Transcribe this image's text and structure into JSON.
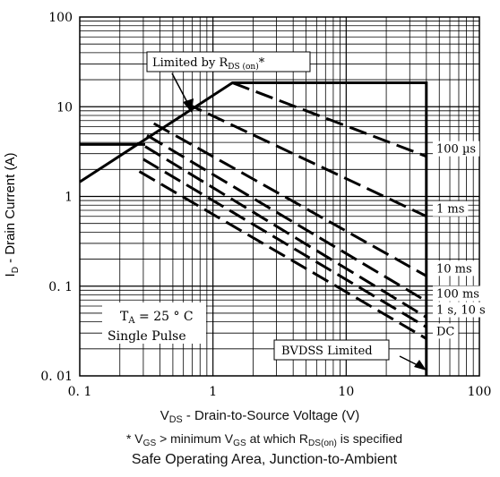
{
  "chart_data": {
    "type": "line",
    "title": "Safe Operating Area, Junction-to-Ambient",
    "xlabel": {
      "main": "V",
      "sub": "DS",
      "rest": " - Drain-to-Source Voltage (V)"
    },
    "ylabel": {
      "main": "I",
      "sub": "D",
      "rest": " - Drain Current (A)"
    },
    "xscale": "log",
    "yscale": "log",
    "xlim": [
      0.1,
      100
    ],
    "ylim": [
      0.01,
      100
    ],
    "grid": true,
    "x_ticks": [
      {
        "v": 0.1,
        "label": "0. 1"
      },
      {
        "v": 1,
        "label": "1"
      },
      {
        "v": 10,
        "label": "10"
      },
      {
        "v": 100,
        "label": "100"
      }
    ],
    "y_ticks": [
      {
        "v": 100,
        "label": "100"
      },
      {
        "v": 10,
        "label": "10"
      },
      {
        "v": 1,
        "label": "1"
      },
      {
        "v": 0.1,
        "label": "0. 1"
      },
      {
        "v": 0.01,
        "label": "0. 01"
      }
    ],
    "boundary_series": [
      {
        "style": "solid",
        "x": [
          0.1,
          1.4,
          40,
          40
        ],
        "y": [
          1.45,
          18.5,
          18.5,
          0.01
        ]
      },
      {
        "style": "solid",
        "x": [
          0.1,
          0.31
        ],
        "y": [
          3.8,
          3.8
        ]
      }
    ],
    "series": [
      {
        "name": "100 µs",
        "label": "100 µs",
        "style": "dashed",
        "x": [
          1.4,
          40
        ],
        "y": [
          18.5,
          2.8
        ]
      },
      {
        "name": "1 ms",
        "label": "1 ms",
        "style": "dashed",
        "x": [
          0.62,
          40
        ],
        "y": [
          11,
          0.6
        ]
      },
      {
        "name": "10 ms",
        "label": "10 ms",
        "style": "dashed",
        "x": [
          0.36,
          40
        ],
        "y": [
          6.5,
          0.13
        ]
      },
      {
        "name": "100 ms",
        "label": "100 ms",
        "style": "dashed",
        "x": [
          0.32,
          40
        ],
        "y": [
          4.8,
          0.068
        ]
      },
      {
        "name": "1 s, 10 s",
        "label": "1 s, 10 s",
        "style": "dashed",
        "x": [
          0.31,
          40
        ],
        "y": [
          3.6,
          0.045
        ]
      },
      {
        "name": "",
        "label": "",
        "style": "dashed",
        "x": [
          0.3,
          40
        ],
        "y": [
          2.6,
          0.035
        ]
      },
      {
        "name": "DC",
        "label": "DC",
        "style": "dashed",
        "x": [
          0.28,
          40
        ],
        "y": [
          1.9,
          0.026
        ]
      }
    ],
    "annotations": {
      "limited_rds": {
        "text": "Limited by R",
        "sub": "DS (on)",
        "suffix": "*"
      },
      "conditions": {
        "line1": "T",
        "line1_sub": "A",
        "line1_rest": " = 25 ° C",
        "line2": "Single Pulse"
      },
      "bvdss": "BVDSS Limited"
    },
    "footnote": {
      "p1": "* V",
      "s1": "GS",
      "p2": " > minimum V",
      "s2": "GS",
      "p3": " at which R",
      "s3": "DS(on)",
      "p4": " is specified"
    }
  }
}
